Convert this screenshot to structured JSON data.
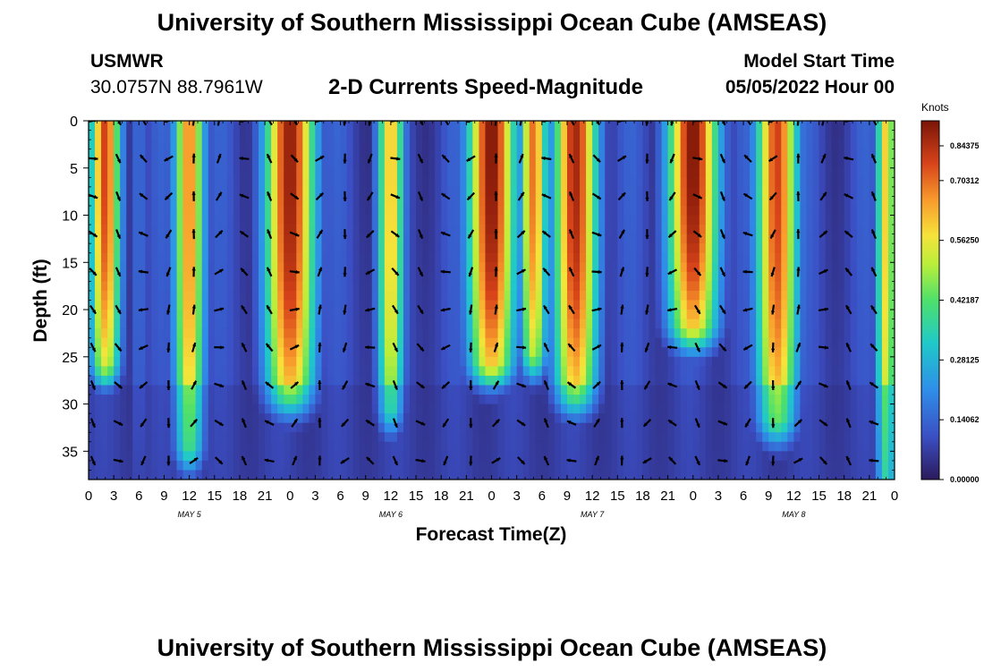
{
  "page": {
    "title": "University of Southern Mississippi Ocean Cube (AMSEAS)",
    "station_name": "USMWR",
    "coordinates": "30.0757N  88.7961W",
    "plot_title": "2-D Currents Speed-Magnitude",
    "model_start_label": "Model Start Time",
    "model_start_value": "05/05/2022 Hour 00",
    "footer_title": "University of Southern Mississippi Ocean Cube (AMSEAS)"
  },
  "chart_data": {
    "type": "heatmap",
    "title": "2-D Currents Speed-Magnitude",
    "xlabel": "Forecast Time(Z)",
    "ylabel": "Depth (ft)",
    "colorbar_label": "Knots",
    "colorbar_ticks": [
      "0.84375",
      "0.70312",
      "0.56250",
      "0.42187",
      "0.28125",
      "0.14062",
      "0.00000"
    ],
    "color_range": [
      0,
      0.84375
    ],
    "x_hours_range": [
      0,
      96
    ],
    "x_tick_labels": [
      "0",
      "3",
      "6",
      "9",
      "12",
      "15",
      "18",
      "21",
      "0",
      "3",
      "6",
      "9",
      "12",
      "15",
      "18",
      "21",
      "0",
      "3",
      "6",
      "9",
      "12",
      "15",
      "18",
      "21",
      "0",
      "3",
      "6",
      "9",
      "12",
      "15",
      "18",
      "21",
      "0"
    ],
    "x_tick_step_hours": 3,
    "day_labels": [
      {
        "label": "MAY 5",
        "hour": 12
      },
      {
        "label": "MAY 6",
        "hour": 36
      },
      {
        "label": "MAY 7",
        "hour": 60
      },
      {
        "label": "MAY 8",
        "hour": 84
      }
    ],
    "y_range": [
      0,
      38
    ],
    "y_ticks": [
      0,
      5,
      10,
      15,
      20,
      25,
      30,
      35
    ],
    "speed_peaks": [
      {
        "hour": 2,
        "width_h": 1.8,
        "amp": 0.75,
        "depth_max": 25
      },
      {
        "hour": 6,
        "width_h": 1.2,
        "amp": 0.15,
        "depth_max": 38
      },
      {
        "hour": 12,
        "width_h": 1.8,
        "amp": 0.68,
        "depth_max": 34
      },
      {
        "hour": 24,
        "width_h": 3.0,
        "amp": 0.82,
        "depth_max": 28
      },
      {
        "hour": 36,
        "width_h": 1.6,
        "amp": 0.62,
        "depth_max": 30
      },
      {
        "hour": 48,
        "width_h": 2.8,
        "amp": 0.84,
        "depth_max": 25
      },
      {
        "hour": 53,
        "width_h": 1.6,
        "amp": 0.7,
        "depth_max": 24
      },
      {
        "hour": 58,
        "width_h": 2.6,
        "amp": 0.8,
        "depth_max": 28
      },
      {
        "hour": 72,
        "width_h": 3.0,
        "amp": 0.84,
        "depth_max": 21
      },
      {
        "hour": 82,
        "width_h": 2.5,
        "amp": 0.75,
        "depth_max": 31
      },
      {
        "hour": 95,
        "width_h": 1.2,
        "amp": 0.6,
        "depth_max": 38
      }
    ],
    "vector_depths": [
      0,
      4,
      8,
      12,
      16,
      20,
      24,
      28,
      32,
      36
    ],
    "vector_hours_step": 3
  }
}
